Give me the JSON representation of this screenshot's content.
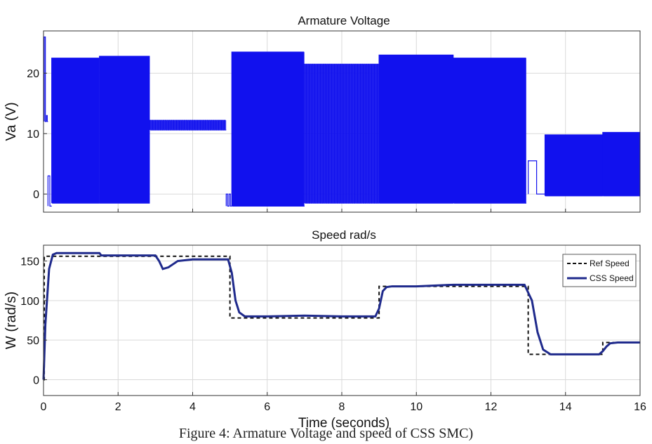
{
  "caption": "Figure 4: Armature Voltage and speed of CSS SMC)",
  "colors": {
    "signal": "#1111ee",
    "speed": "#1f2a8c",
    "ref": "#111111",
    "grid": "#d9d9d9",
    "axis": "#333333"
  },
  "chart_data": [
    {
      "type": "line",
      "title": "Armature Voltage",
      "xlabel": "",
      "ylabel": "Va (V)",
      "xlim": [
        0,
        16
      ],
      "ylim": [
        -3,
        27
      ],
      "xticks": [
        0,
        2,
        4,
        6,
        8,
        10,
        12,
        14,
        16
      ],
      "yticks": [
        0,
        10,
        20
      ],
      "grid": true,
      "tick_labels_x": false,
      "series": [
        {
          "style": "pwm",
          "segments": [
            {
              "t0": 0.02,
              "t1": 0.08,
              "low": 12,
              "high": 26
            },
            {
              "t0": 0.08,
              "t1": 0.12,
              "low": 12,
              "high": 13
            },
            {
              "t0": 0.12,
              "t1": 0.22,
              "low": -2,
              "high": 3
            },
            {
              "t0": 0.22,
              "t1": 1.5,
              "low": -1.5,
              "high": 22.5,
              "cycles": 30
            },
            {
              "t0": 1.5,
              "t1": 2.85,
              "low": -1.5,
              "high": 22.8,
              "cycles": 60
            },
            {
              "t0": 2.85,
              "t1": 4.9,
              "low": 10.6,
              "high": 12.2,
              "cycles": 40
            },
            {
              "t0": 4.9,
              "t1": 5.05,
              "low": -2,
              "high": 0,
              "cycles": 2
            },
            {
              "t0": 5.05,
              "t1": 7.0,
              "low": -2,
              "high": 23.5,
              "cycles": 45
            },
            {
              "t0": 7.0,
              "t1": 9.0,
              "low": -1.5,
              "high": 21.5,
              "cycles": 40
            },
            {
              "t0": 9.0,
              "t1": 11.0,
              "low": -1.5,
              "high": 23,
              "cycles": 70
            },
            {
              "t0": 11.0,
              "t1": 12.95,
              "low": -1.5,
              "high": 22.5,
              "cycles": 50
            },
            {
              "t0": 13.0,
              "t1": 13.45,
              "low": 0,
              "high": 5.5,
              "cycles": 1
            },
            {
              "t0": 13.45,
              "t1": 15.0,
              "low": -0.3,
              "high": 9.8,
              "cycles": 45
            },
            {
              "t0": 15.0,
              "t1": 16.0,
              "low": -0.3,
              "high": 10.2,
              "cycles": 30
            }
          ]
        }
      ]
    },
    {
      "type": "line",
      "title": "Speed rad/s",
      "xlabel": "Time (seconds)",
      "ylabel": "W (rad/s)",
      "xlim": [
        0,
        16
      ],
      "ylim": [
        -20,
        170
      ],
      "xticks": [
        0,
        2,
        4,
        6,
        8,
        10,
        12,
        14,
        16
      ],
      "yticks": [
        0,
        50,
        100,
        150
      ],
      "grid": true,
      "legend": "top-right",
      "series": [
        {
          "name": "Ref Speed",
          "style": "dashed",
          "x": [
            0,
            0.02,
            0.02,
            5.0,
            5.0,
            9.0,
            9.0,
            13.0,
            13.0,
            15.0,
            15.0,
            16.0
          ],
          "y": [
            0,
            0,
            156,
            156,
            78,
            78,
            118,
            118,
            32,
            32,
            47,
            47
          ]
        },
        {
          "name": "CSS Speed",
          "style": "solid",
          "x": [
            0,
            0.05,
            0.15,
            0.25,
            0.35,
            0.5,
            1.0,
            1.5,
            1.55,
            2.0,
            3.0,
            3.1,
            3.2,
            3.35,
            3.6,
            4.0,
            4.95,
            5.05,
            5.15,
            5.25,
            5.4,
            6.0,
            7.0,
            8.0,
            8.9,
            9.0,
            9.1,
            9.2,
            9.35,
            9.6,
            10.0,
            11.0,
            12.0,
            12.9,
            13.1,
            13.25,
            13.4,
            13.6,
            14.0,
            14.9,
            15.0,
            15.1,
            15.2,
            15.4,
            16.0
          ],
          "y": [
            0,
            70,
            140,
            158,
            160,
            160,
            160,
            160,
            157,
            157,
            157,
            150,
            140,
            142,
            150,
            152,
            152,
            135,
            100,
            85,
            80,
            80,
            81,
            80,
            80,
            90,
            112,
            117,
            118,
            118,
            118,
            120,
            120,
            120,
            100,
            60,
            38,
            32,
            32,
            32,
            36,
            42,
            46,
            47,
            47
          ]
        }
      ]
    }
  ]
}
